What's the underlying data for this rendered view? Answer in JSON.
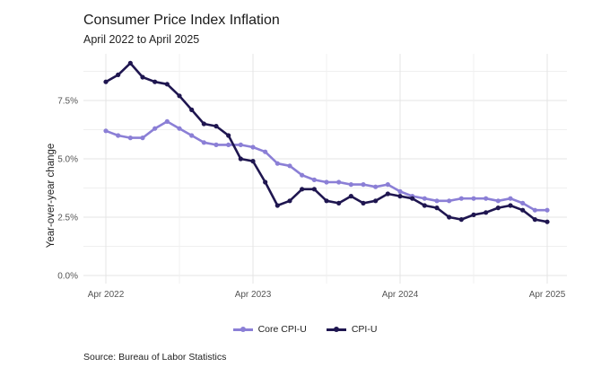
{
  "chart_data": {
    "type": "line",
    "title": "Consumer Price Index Inflation",
    "subtitle": "April 2022 to April 2025",
    "xlabel": "",
    "ylabel": "Year-over-year change",
    "ylim": [
      0,
      9.5
    ],
    "yticks": [
      0,
      2.5,
      5.0,
      7.5
    ],
    "ytick_labels": [
      "0.0%",
      "2.5%",
      "5.0%",
      "7.5%"
    ],
    "xticks": [
      0,
      12,
      24,
      36
    ],
    "xtick_labels": [
      "Apr 2022",
      "Apr 2023",
      "Apr 2024",
      "Apr 2025"
    ],
    "x": [
      0,
      1,
      2,
      3,
      4,
      5,
      6,
      7,
      8,
      9,
      10,
      11,
      12,
      13,
      14,
      15,
      16,
      17,
      18,
      19,
      20,
      21,
      22,
      23,
      24,
      25,
      26,
      27,
      28,
      29,
      30,
      31,
      32,
      33,
      34,
      35,
      36
    ],
    "series": [
      {
        "name": "Core CPI-U",
        "color": "#8b7fd6",
        "values": [
          6.2,
          6.0,
          5.9,
          5.9,
          6.3,
          6.6,
          6.3,
          6.0,
          5.7,
          5.6,
          5.6,
          5.6,
          5.5,
          5.3,
          4.8,
          4.7,
          4.3,
          4.1,
          4.0,
          4.0,
          3.9,
          3.9,
          3.8,
          3.9,
          3.6,
          3.4,
          3.3,
          3.2,
          3.2,
          3.3,
          3.3,
          3.3,
          3.2,
          3.3,
          3.1,
          2.8,
          2.8
        ]
      },
      {
        "name": "CPI-U",
        "color": "#1f1650",
        "values": [
          8.3,
          8.6,
          9.1,
          8.5,
          8.3,
          8.2,
          7.7,
          7.1,
          6.5,
          6.4,
          6.0,
          5.0,
          4.9,
          4.0,
          3.0,
          3.2,
          3.7,
          3.7,
          3.2,
          3.1,
          3.4,
          3.1,
          3.2,
          3.5,
          3.4,
          3.3,
          3.0,
          2.9,
          2.5,
          2.4,
          2.6,
          2.7,
          2.9,
          3.0,
          2.8,
          2.4,
          2.3
        ]
      }
    ],
    "legend_position": "bottom",
    "grid": true,
    "source": "Source: Bureau of Labor Statistics"
  }
}
